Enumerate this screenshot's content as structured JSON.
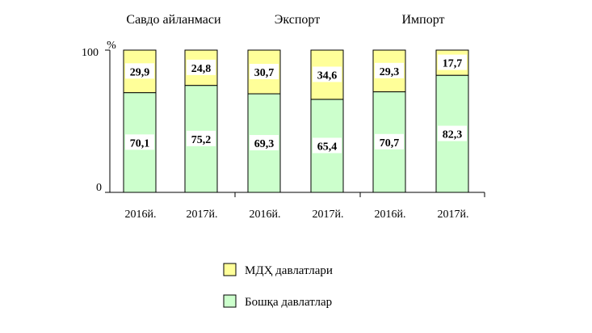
{
  "chart_data": {
    "type": "bar",
    "stacked": true,
    "percent_scale": true,
    "groups": [
      "Савдо айланмаси",
      "Экспорт",
      "Импорт"
    ],
    "categories": [
      "2016й.",
      "2017й.",
      "2016й.",
      "2017й.",
      "2016й.",
      "2017й."
    ],
    "series": [
      {
        "name": "Бошқа давлатлар",
        "values": [
          70.1,
          75.2,
          69.3,
          65.4,
          70.7,
          82.3
        ],
        "color": "#ccffcc"
      },
      {
        "name": "МДҲ давлатлари",
        "values": [
          29.9,
          24.8,
          30.7,
          34.6,
          29.3,
          17.7
        ],
        "color": "#ffff99"
      }
    ],
    "value_labels": {
      "bottom": [
        "70,1",
        "75,2",
        "69,3",
        "65,4",
        "70,7",
        "82,3"
      ],
      "top": [
        "29,9",
        "24,8",
        "30,7",
        "34,6",
        "29,3",
        "17,7"
      ]
    },
    "y_unit": "%",
    "ylim": [
      0,
      100
    ],
    "y_ticks": [
      "0",
      "100"
    ],
    "grid": false,
    "legend_position": "bottom"
  }
}
